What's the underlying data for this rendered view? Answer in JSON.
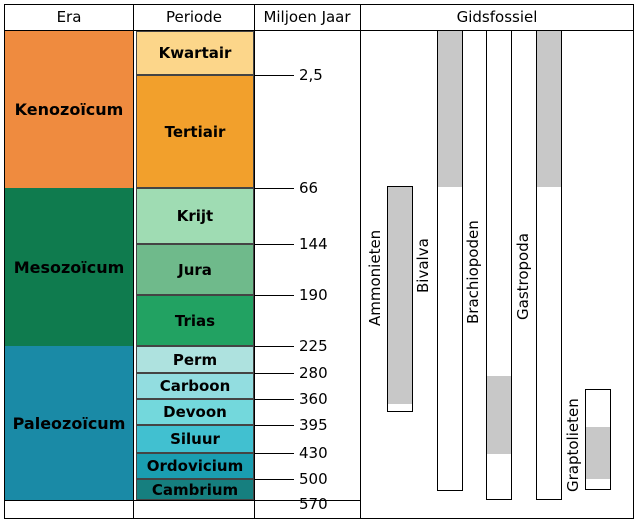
{
  "headers": {
    "era": "Era",
    "periode": "Periode",
    "miljoen_jaar": "Miljoen Jaar",
    "gidsfossiel": "Gidsfossiel"
  },
  "eras": [
    {
      "name": "Kenozoïcum",
      "color": "#ef8b3f"
    },
    {
      "name": "Mesozoïcum",
      "color": "#0f7b4e"
    },
    {
      "name": "Paleozoïcum",
      "color": "#1a8aa6"
    }
  ],
  "periods": [
    {
      "name": "Kwartair",
      "color": "#fcd68a"
    },
    {
      "name": "Tertiair",
      "color": "#f2a02c"
    },
    {
      "name": "Krijt",
      "color": "#9fdcb3"
    },
    {
      "name": "Jura",
      "color": "#6fba8b"
    },
    {
      "name": "Trias",
      "color": "#22a262"
    },
    {
      "name": "Perm",
      "color": "#aee2df"
    },
    {
      "name": "Carboon",
      "color": "#92dde0"
    },
    {
      "name": "Devoon",
      "color": "#73d8dc"
    },
    {
      "name": "Siluur",
      "color": "#41c0d0"
    },
    {
      "name": "Ordovicium",
      "color": "#1a9eb1"
    },
    {
      "name": "Cambrium",
      "color": "#167f7f"
    }
  ],
  "ages": [
    "2,5",
    "66",
    "144",
    "190",
    "225",
    "280",
    "360",
    "395",
    "430",
    "500",
    "570"
  ],
  "fossils": [
    {
      "name": "Ammonieten"
    },
    {
      "name": "Bivalva"
    },
    {
      "name": "Brachiopoden"
    },
    {
      "name": "Gastropoda"
    },
    {
      "name": "Graptolieten"
    }
  ]
}
